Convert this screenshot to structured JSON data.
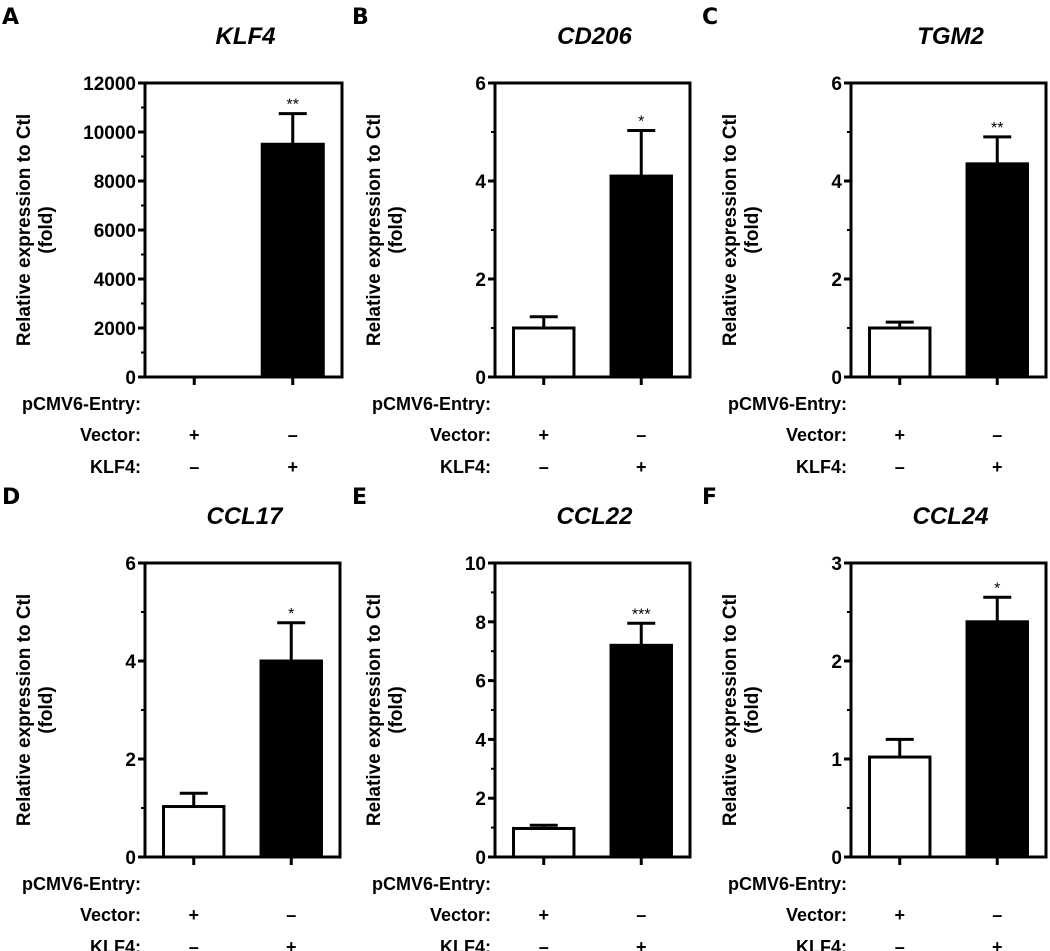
{
  "figure": {
    "condition_header": "pCMV6-Entry:",
    "row_labels": [
      "Vector:",
      "KLF4:"
    ],
    "ylabel_line1": "Relative expression to Ctl",
    "ylabel_line2": "(fold)"
  },
  "chart_data": [
    {
      "type": "bar",
      "panel": "A",
      "title": "KLF4",
      "categories": [
        "Vector",
        "KLF4"
      ],
      "vector_row": [
        "+",
        "-"
      ],
      "klf4_row": [
        "-",
        "+"
      ],
      "values": [
        0,
        9500
      ],
      "errors": [
        0,
        1250
      ],
      "significance": [
        "",
        "**"
      ],
      "ylim": [
        0,
        12000
      ],
      "yticks": [
        0,
        2000,
        4000,
        6000,
        8000,
        10000,
        12000
      ],
      "ylabel": "Relative expression to Ctl (fold)",
      "fills": [
        "#ffffff",
        "#000000"
      ]
    },
    {
      "type": "bar",
      "panel": "B",
      "title": "CD206",
      "categories": [
        "Vector",
        "KLF4"
      ],
      "vector_row": [
        "+",
        "-"
      ],
      "klf4_row": [
        "-",
        "+"
      ],
      "values": [
        1.0,
        4.1
      ],
      "errors": [
        0.23,
        0.93
      ],
      "significance": [
        "",
        "*"
      ],
      "ylim": [
        0,
        6
      ],
      "yticks": [
        0,
        2,
        4,
        6
      ],
      "ylabel": "Relative expression to Ctl (fold)",
      "fills": [
        "#ffffff",
        "#000000"
      ]
    },
    {
      "type": "bar",
      "panel": "C",
      "title": "TGM2",
      "categories": [
        "Vector",
        "KLF4"
      ],
      "vector_row": [
        "+",
        "-"
      ],
      "klf4_row": [
        "-",
        "+"
      ],
      "values": [
        1.0,
        4.35
      ],
      "errors": [
        0.12,
        0.55
      ],
      "significance": [
        "",
        "**"
      ],
      "ylim": [
        0,
        6
      ],
      "yticks": [
        0,
        2,
        4,
        6
      ],
      "ylabel": "Relative expression to Ctl (fold)",
      "fills": [
        "#ffffff",
        "#000000"
      ]
    },
    {
      "type": "bar",
      "panel": "D",
      "title": "CCL17",
      "categories": [
        "Vector",
        "KLF4"
      ],
      "vector_row": [
        "+",
        "-"
      ],
      "klf4_row": [
        "-",
        "+"
      ],
      "values": [
        1.03,
        4.0
      ],
      "errors": [
        0.27,
        0.78
      ],
      "significance": [
        "",
        "*"
      ],
      "ylim": [
        0,
        6
      ],
      "yticks": [
        0,
        2,
        4,
        6
      ],
      "ylabel": "Relative expression to Ctl (fold)",
      "fills": [
        "#ffffff",
        "#000000"
      ]
    },
    {
      "type": "bar",
      "panel": "E",
      "title": "CCL22",
      "categories": [
        "Vector",
        "KLF4"
      ],
      "vector_row": [
        "+",
        "-"
      ],
      "klf4_row": [
        "-",
        "+"
      ],
      "values": [
        0.97,
        7.2
      ],
      "errors": [
        0.11,
        0.75
      ],
      "significance": [
        "",
        "***"
      ],
      "ylim": [
        0,
        10
      ],
      "yticks": [
        0,
        2,
        4,
        6,
        8,
        10
      ],
      "ylabel": "Relative expression to Ctl (fold)",
      "fills": [
        "#ffffff",
        "#000000"
      ]
    },
    {
      "type": "bar",
      "panel": "F",
      "title": "CCL24",
      "categories": [
        "Vector",
        "KLF4"
      ],
      "vector_row": [
        "+",
        "-"
      ],
      "klf4_row": [
        "-",
        "+"
      ],
      "values": [
        1.02,
        2.4
      ],
      "errors": [
        0.18,
        0.25
      ],
      "significance": [
        "",
        "*"
      ],
      "ylim": [
        0,
        3
      ],
      "yticks": [
        0,
        1,
        2,
        3
      ],
      "ylabel": "Relative expression to Ctl (fold)",
      "fills": [
        "#ffffff",
        "#000000"
      ]
    }
  ]
}
